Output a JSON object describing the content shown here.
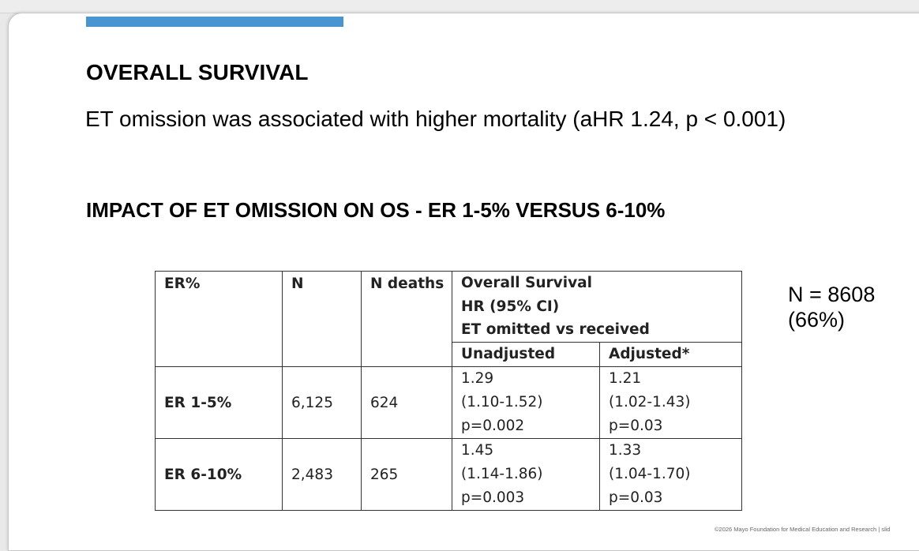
{
  "slide": {
    "heading": "OVERALL SURVIVAL",
    "lead": "ET omission was associated with higher mortality (aHR 1.24, p < 0.001)",
    "subheading": "IMPACT OF ET OMISSION ON OS - ER 1-5% VERSUS 6-10%",
    "note_line1": "N = 8608",
    "note_line2": "(66%)",
    "footer": "©2026 Mayo Foundation for Medical Education and Research  |  slid",
    "accent_color": "#4795d2"
  },
  "table": {
    "headers": {
      "er": "ER%",
      "n": "N",
      "n_deaths": "N deaths",
      "os_line1": "Overall Survival",
      "os_line2": "HR (95% CI)",
      "os_line3": "ET omitted vs received",
      "unadjusted": "Unadjusted",
      "adjusted": "Adjusted*"
    },
    "rows": [
      {
        "er": "ER 1-5%",
        "n": "6,125",
        "n_deaths": "624",
        "unadj_hr": "1.29",
        "unadj_ci": "(1.10-1.52)",
        "unadj_p": "p=0.002",
        "adj_hr": "1.21",
        "adj_ci": "(1.02-1.43)",
        "adj_p": "p=0.03"
      },
      {
        "er": "ER 6-10%",
        "n": "2,483",
        "n_deaths": "265",
        "unadj_hr": "1.45",
        "unadj_ci": "(1.14-1.86)",
        "unadj_p": "p=0.003",
        "adj_hr": "1.33",
        "adj_ci": "(1.04-1.70)",
        "adj_p": "p=0.03"
      }
    ]
  }
}
